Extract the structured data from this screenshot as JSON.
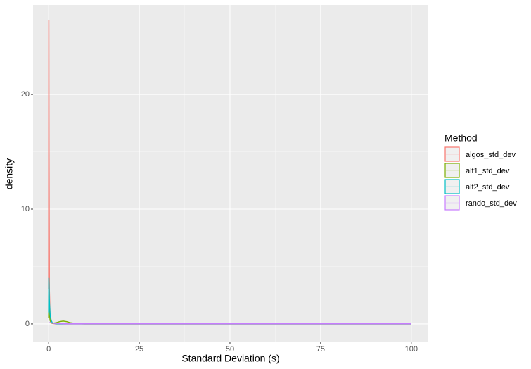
{
  "chart_data": {
    "type": "line",
    "x_label": "Standard Deviation (s)",
    "y_label": "density",
    "legend_title": "Method",
    "legend_position": "right",
    "x": [
      0,
      0.05,
      0.1,
      0.2,
      0.4,
      0.7,
      1,
      2,
      3,
      4,
      5,
      6,
      8,
      10,
      50,
      100
    ],
    "series": [
      {
        "name": "algos_std_dev",
        "color": "#F8766D",
        "values": [
          3,
          26.5,
          15,
          3,
          0.5,
          0.1,
          0.05,
          0,
          0,
          0,
          0,
          0,
          0,
          0,
          0,
          0
        ]
      },
      {
        "name": "alt1_std_dev",
        "color": "#7CAE00",
        "values": [
          0.5,
          2,
          2.5,
          1,
          0.3,
          0.1,
          0.05,
          0.1,
          0.2,
          0.25,
          0.2,
          0.1,
          0.02,
          0,
          0,
          0
        ]
      },
      {
        "name": "alt2_std_dev",
        "color": "#00BFC4",
        "values": [
          1,
          4,
          3.5,
          2,
          0.8,
          0.3,
          0.1,
          0.02,
          0,
          0,
          0,
          0,
          0,
          0,
          0,
          0
        ]
      },
      {
        "name": "rando_std_dev",
        "color": "#C77CFF",
        "values": [
          0.1,
          0.1,
          0.1,
          0.1,
          0.1,
          0.1,
          0.08,
          0.05,
          0.03,
          0.02,
          0.015,
          0.01,
          0.01,
          0.01,
          0.01,
          0.01
        ]
      }
    ],
    "xlim": [
      -4.3,
      104.7
    ],
    "xticks": [
      0,
      25,
      50,
      75,
      100
    ],
    "ylim": [
      -1.6,
      27.8
    ],
    "yticks": [
      0,
      10,
      20
    ],
    "grid": true
  }
}
